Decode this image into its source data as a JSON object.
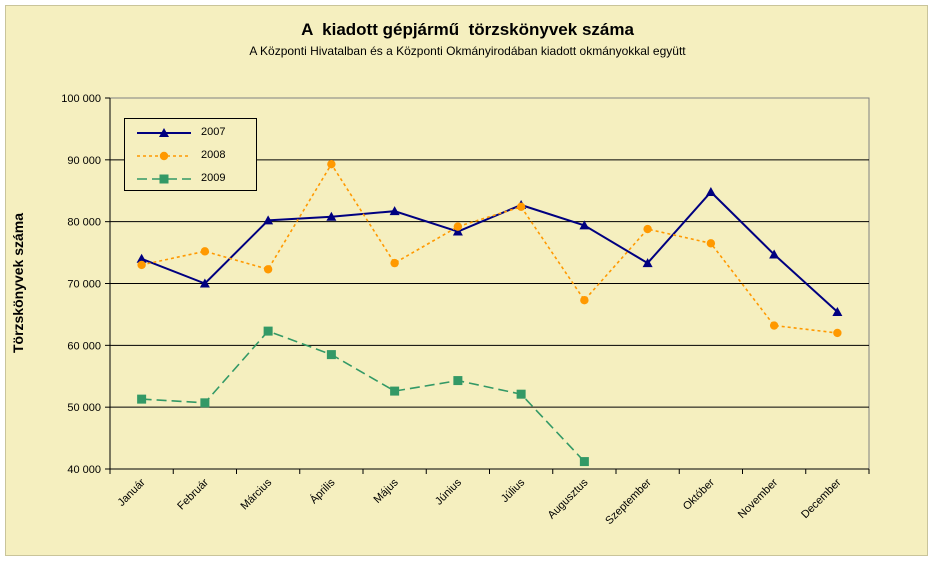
{
  "chart_data": {
    "type": "line",
    "title": "A  kiadott gépjármű  törzskönyvek száma",
    "subtitle": "A Központi Hivatalban és a Központi Okmányirodában kiadott okmányokkal együtt",
    "xlabel": "",
    "ylabel": "Törzskönyvek száma",
    "ylim": [
      40000,
      100000
    ],
    "yticks": [
      40000,
      50000,
      60000,
      70000,
      80000,
      90000,
      100000
    ],
    "ytick_labels": [
      "40 000",
      "50 000",
      "60 000",
      "70 000",
      "80 000",
      "90 000",
      "100 000"
    ],
    "grid": true,
    "legend_position": "top-left",
    "categories": [
      "Január",
      "Február",
      "Március",
      "Április",
      "Május",
      "Június",
      "Július",
      "Augusztus",
      "Szeptember",
      "Október",
      "November",
      "December"
    ],
    "series": [
      {
        "name": "2007",
        "color": "#000080",
        "style": "solid",
        "marker": "triangle",
        "values": [
          74000,
          70000,
          80200,
          80800,
          81700,
          78400,
          82700,
          79400,
          73300,
          84800,
          74700,
          65400
        ]
      },
      {
        "name": "2008",
        "color": "#ff9900",
        "style": "dotted",
        "marker": "circle",
        "values": [
          73000,
          75200,
          72300,
          89300,
          73300,
          79200,
          82400,
          67300,
          78800,
          76500,
          63200,
          62000
        ]
      },
      {
        "name": "2009",
        "color": "#339966",
        "style": "dashed",
        "marker": "square",
        "values": [
          51300,
          50700,
          62300,
          58500,
          52600,
          54300,
          52100,
          41200,
          null,
          null,
          null,
          null
        ]
      }
    ]
  }
}
